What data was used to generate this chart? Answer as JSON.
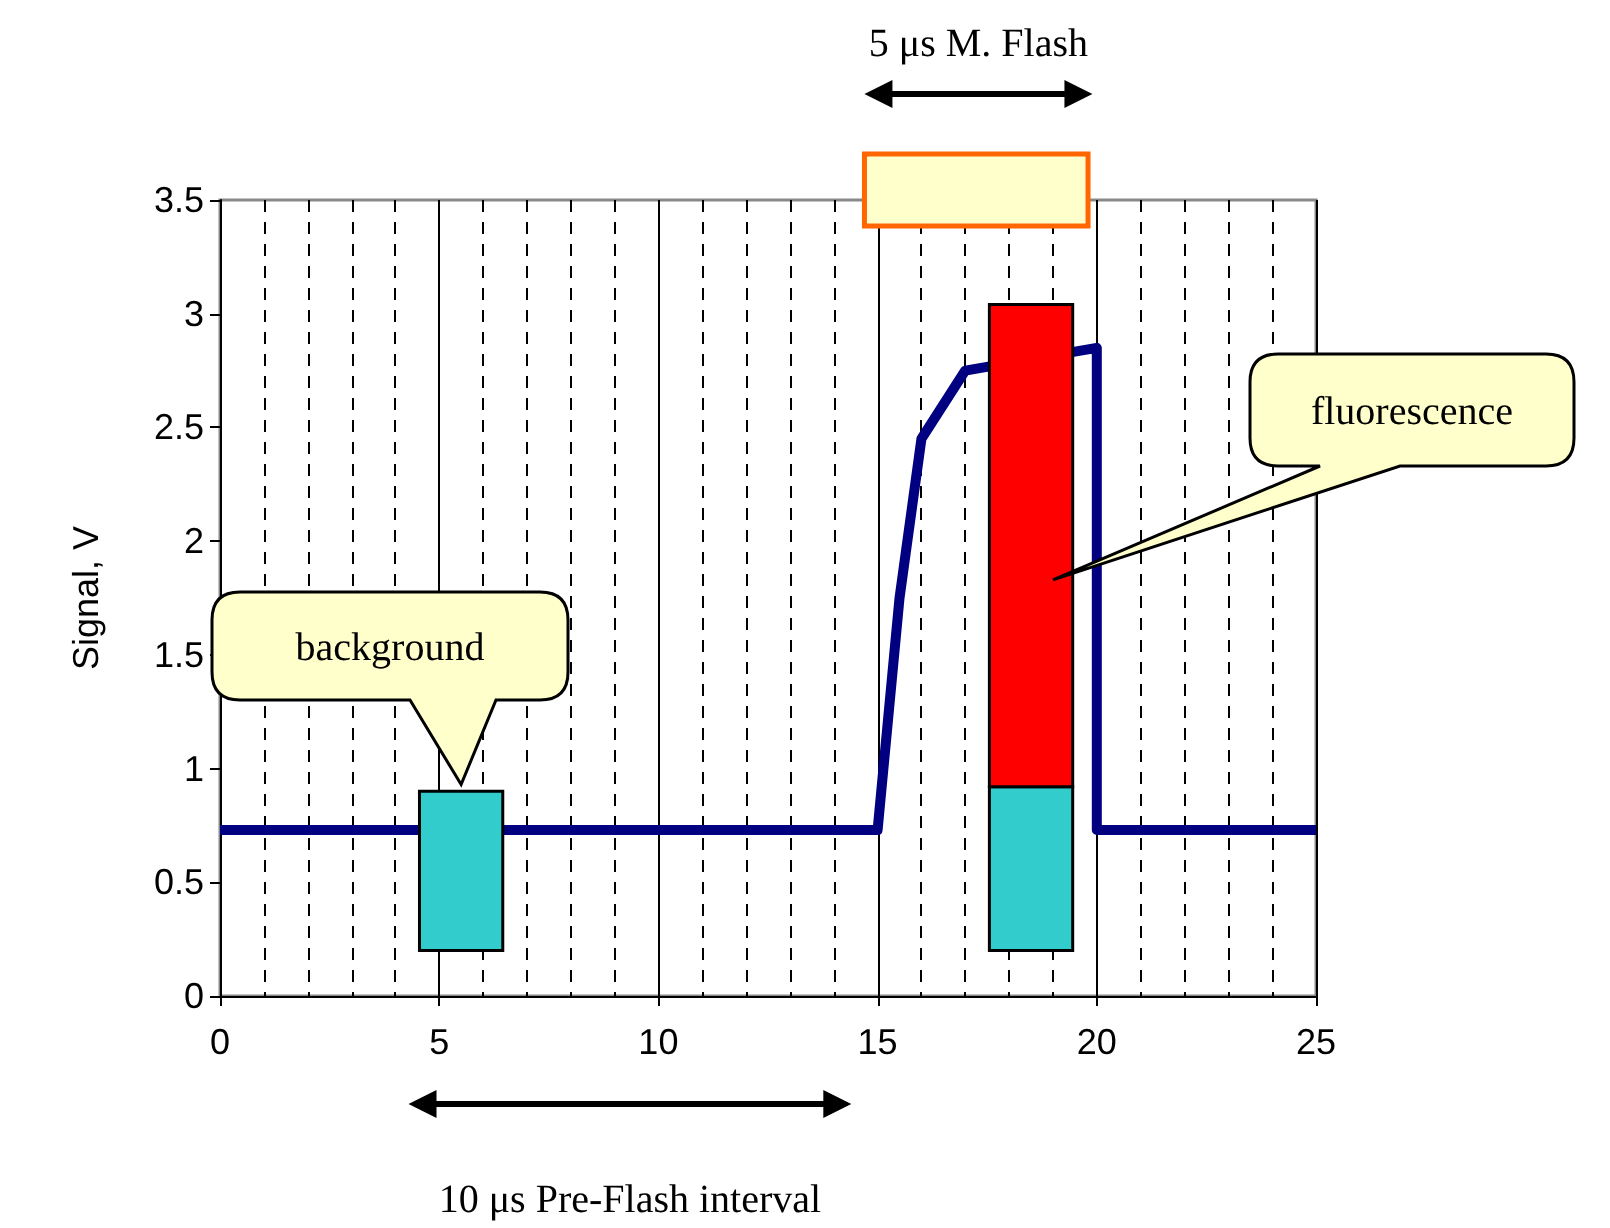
{
  "chart_data": {
    "type": "line",
    "ylabel": "Signal, V",
    "xlim": [
      0,
      25
    ],
    "xticks": [
      0,
      {
        "value": 1,
        "label": null
      },
      {
        "value": 2,
        "label": null
      },
      {
        "value": 3,
        "label": null
      },
      {
        "value": 4,
        "label": null
      },
      5,
      {
        "value": 6,
        "label": null
      },
      {
        "value": 7,
        "label": null
      },
      {
        "value": 8,
        "label": null
      },
      {
        "value": 9,
        "label": null
      },
      10,
      {
        "value": 11,
        "label": null
      },
      {
        "value": 12,
        "label": null
      },
      {
        "value": 13,
        "label": null
      },
      {
        "value": 14,
        "label": null
      },
      15,
      {
        "value": 16,
        "label": null
      },
      {
        "value": 17,
        "label": null
      },
      {
        "value": 18,
        "label": null
      },
      {
        "value": 19,
        "label": null
      },
      20,
      {
        "value": 21,
        "label": null
      },
      {
        "value": 22,
        "label": null
      },
      {
        "value": 23,
        "label": null
      },
      {
        "value": 24,
        "label": null
      },
      25
    ],
    "ylim": [
      0,
      3.5
    ],
    "yticks": [
      0,
      0.5,
      1,
      1.5,
      2,
      2.5,
      3,
      3.5
    ],
    "grid": "x",
    "marker": "none",
    "line_style": "solid",
    "series": [
      {
        "type": "bar",
        "color": "#33cccc",
        "x": [
          5.5,
          18.5
        ],
        "base": [
          0.2,
          0.2
        ],
        "values": [
          0.7,
          0.72
        ]
      },
      {
        "type": "bar",
        "color": "#ff0000",
        "x": [
          18.5
        ],
        "base": [
          0.92
        ],
        "values": [
          2.12
        ]
      },
      {
        "color": "#000080",
        "x": [
          0,
          15,
          15.5,
          16,
          17,
          20,
          20,
          25
        ],
        "values": [
          0.73,
          0.73,
          1.75,
          2.45,
          2.75,
          2.85,
          0.73,
          0.73
        ]
      }
    ],
    "annotations": [
      "background",
      "fluorescence",
      "5 μs M. Flash",
      "10 μs Pre-Flash interval"
    ]
  }
}
